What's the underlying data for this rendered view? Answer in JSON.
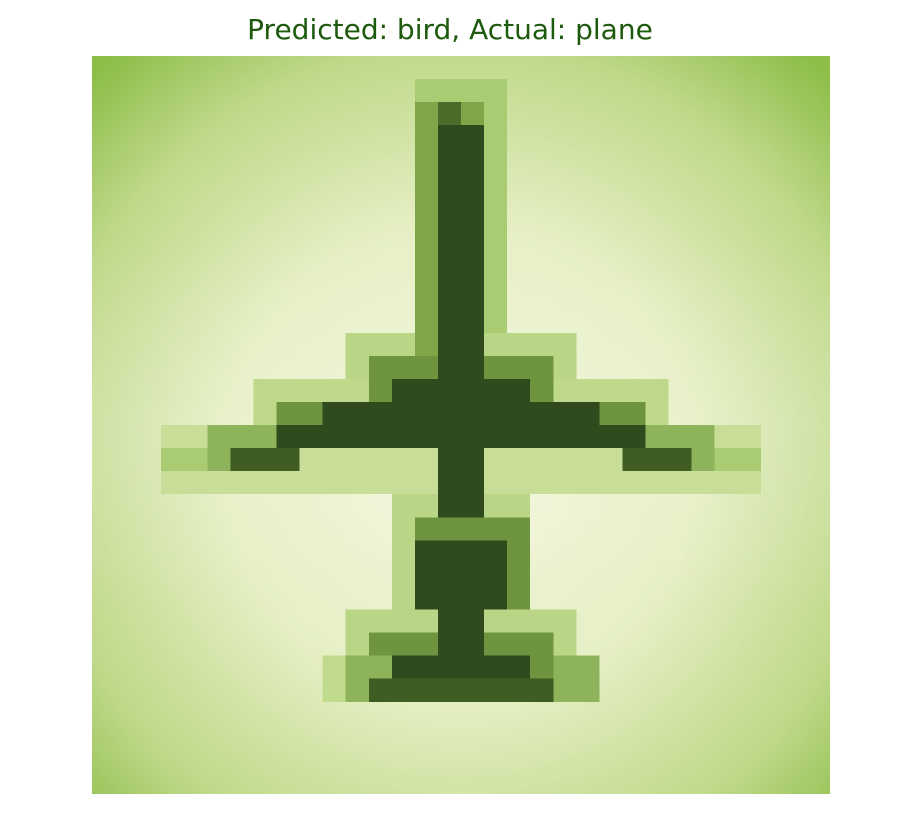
{
  "figure": {
    "title": "Predicted: bird, Actual: plane",
    "title_color": "#1e5a0e"
  },
  "image": {
    "subject": "pixelated airplane viewed from above",
    "palette": {
      "background_light": "#f3f7df",
      "background_edge": "#8ebe4a",
      "object_dark": "#2f4a1c",
      "object_mid": "#5e7f33",
      "object_light": "#a9cc73"
    }
  }
}
